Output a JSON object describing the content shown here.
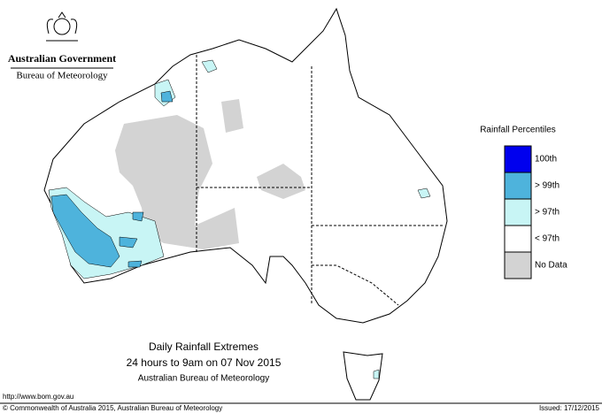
{
  "header": {
    "government": "Australian Government",
    "bureau": "Bureau of Meteorology"
  },
  "legend": {
    "title": "Rainfall Percentiles",
    "items": [
      {
        "label": "100th",
        "color": "#0000ee"
      },
      {
        "label": "> 99th",
        "color": "#4eb3dc"
      },
      {
        "label": "> 97th",
        "color": "#c8f5f5"
      },
      {
        "label": "< 97th",
        "color": "#ffffff"
      },
      {
        "label": "No Data",
        "color": "#d3d3d3"
      }
    ]
  },
  "caption": {
    "title": "Daily Rainfall Extremes",
    "subtitle": "24 hours to 9am on 07 Nov 2015",
    "source": "Australian Bureau of Meteorology"
  },
  "footer": {
    "url": "http://www.bom.gov.au",
    "copyright": "© Commonwealth of Australia 2015, Australian Bureau of Meteorology",
    "issued": "Issued: 17/12/2015"
  }
}
